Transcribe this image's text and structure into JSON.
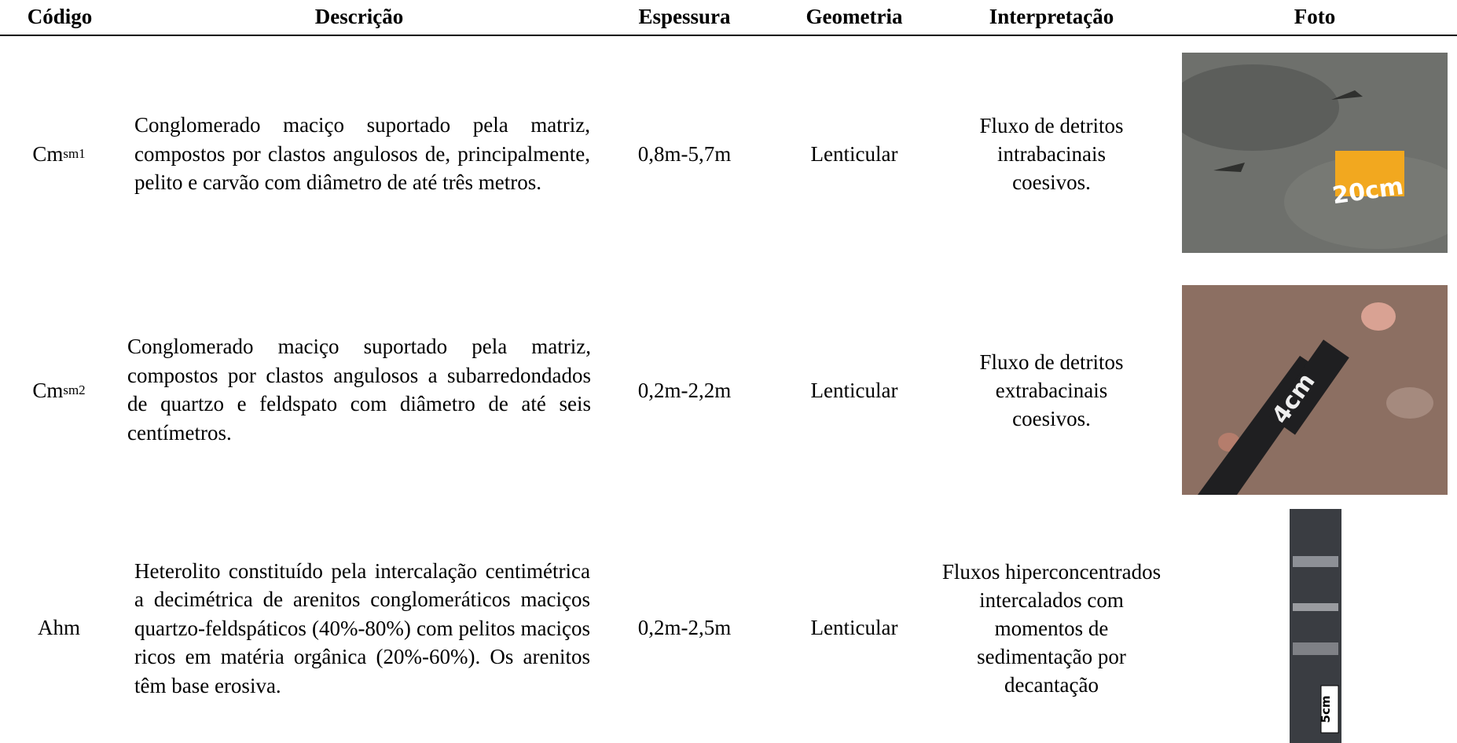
{
  "table": {
    "headers": [
      "Código",
      "Descrição",
      "Espessura",
      "Geometria",
      "Interpretação",
      "Foto"
    ],
    "rows": [
      {
        "code": {
          "base": "Cm",
          "sub": "sm1"
        },
        "description": "Conglomerado maciço suportado pela matriz, compostos por clastos angulosos de, principalmente, pelito e carvão com diâmetro de até três metros.",
        "thickness": "0,8m-5,7m",
        "geometry": "Lenticular",
        "interpretation": "Fluxo de detritos intrabacinais coesivos.",
        "photo_label": "20cm"
      },
      {
        "code": {
          "base": "Cm",
          "sub": "sm2"
        },
        "description": "Conglomerado maciço suportado pela matriz, compostos por clastos angulosos a subarredondados de quartzo e feldspato com diâmetro de até seis centímetros.",
        "thickness": "0,2m-2,2m",
        "geometry": "Lenticular",
        "interpretation": "Fluxo de detritos extrabacinais coesivos.",
        "photo_label": "4cm"
      },
      {
        "code": {
          "base": "Ahm"
        },
        "description": "Heterolito constituído pela intercalação centimétrica a decimétrica de arenitos conglomeráticos maciços quartzo-feldspáticos (40%-80%) com pelitos maciços ricos em matéria orgânica (20%-60%). Os arenitos têm base erosiva.",
        "thickness": "0,2m-2,5m",
        "geometry": "Lenticular",
        "interpretation": "Fluxos hiperconcentrados intercalados com momentos de sedimentação por decantação",
        "photo_label": "5cm"
      }
    ]
  }
}
